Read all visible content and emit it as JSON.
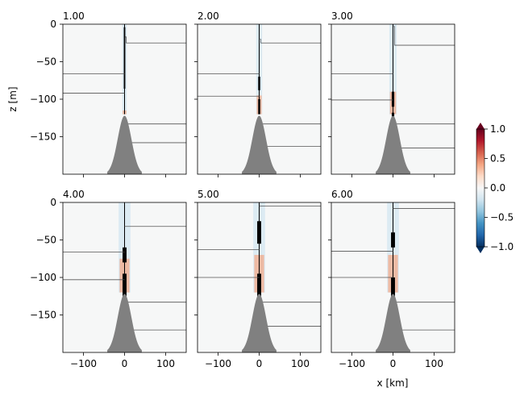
{
  "chart_data": {
    "type": "heatmap",
    "layout": {
      "rows": 2,
      "cols": 3
    },
    "panels": [
      {
        "title": "1.00",
        "left_contours": [
          -66,
          -92
        ],
        "right_contours": [
          [
            -17,
            -25
          ],
          -133,
          -158
        ],
        "plume": {
          "width": 3,
          "depth": -120,
          "warm_top": -115
        },
        "cold_patches": [
          [
            -4,
            -86
          ],
          [
            -140,
            -145
          ]
        ]
      },
      {
        "title": "2.00",
        "left_contours": [
          -66,
          -96
        ],
        "right_contours": [
          [
            -20,
            -25
          ],
          -133,
          -163
        ],
        "plume": {
          "width": 4,
          "depth": -120,
          "warm_top": -95
        },
        "cold_patches": [
          [
            -70,
            -88
          ],
          [
            -100,
            -120
          ]
        ]
      },
      {
        "title": "3.00",
        "left_contours": [
          -66,
          -101
        ],
        "right_contours": [
          [
            -3,
            -28
          ],
          -133,
          -165
        ],
        "plume": {
          "width": 5,
          "depth": -120,
          "warm_top": -90
        },
        "cold_patches": [
          [
            -90,
            -110
          ],
          [
            -118,
            -138
          ]
        ]
      },
      {
        "title": "4.00",
        "left_contours": [
          -66,
          -103
        ],
        "right_contours": [
          -32,
          -133,
          -170
        ],
        "plume": {
          "width": 8,
          "depth": -120,
          "warm_top": -75
        },
        "cold_patches": [
          [
            -60,
            -80
          ],
          [
            -95,
            -135
          ]
        ]
      },
      {
        "title": "5.00",
        "left_contours": [
          -63,
          -100
        ],
        "right_contours": [
          -5,
          -133,
          -165
        ],
        "plume": {
          "width": 8,
          "depth": -120,
          "warm_top": -70
        },
        "cold_patches": [
          [
            -25,
            -55
          ],
          [
            -95,
            -140
          ]
        ]
      },
      {
        "title": "6.00",
        "left_contours": [
          -65,
          -100
        ],
        "right_contours": [
          -8,
          -133,
          -170
        ],
        "plume": {
          "width": 8,
          "depth": -120,
          "warm_top": -70
        },
        "cold_patches": [
          [
            -40,
            -60
          ],
          [
            -100,
            -140
          ]
        ]
      }
    ],
    "xlabel": "x [km]",
    "ylabel": "z [m]",
    "xlim": [
      -150,
      150
    ],
    "ylim": [
      -200,
      0
    ],
    "xticks": [
      -100,
      0,
      100
    ],
    "yticks": [
      0,
      -50,
      -100,
      -150
    ],
    "seamount": {
      "peak": -122,
      "half_width": 42
    },
    "colorbar": {
      "min": -1.0,
      "max": 1.0,
      "ticks": [
        "1.0",
        "0.5",
        "0.0",
        "−0.5",
        "−1.0"
      ],
      "extend": "both",
      "colormap": [
        "#053061",
        "#2166ac",
        "#4393c3",
        "#92c5de",
        "#d1e5f0",
        "#f7f7f7",
        "#fddbc7",
        "#f4a582",
        "#d6604d",
        "#b2182b",
        "#67001f"
      ]
    },
    "colors": {
      "background": "#f6f7f7",
      "topography": "#808080",
      "contour": "#555555"
    }
  }
}
